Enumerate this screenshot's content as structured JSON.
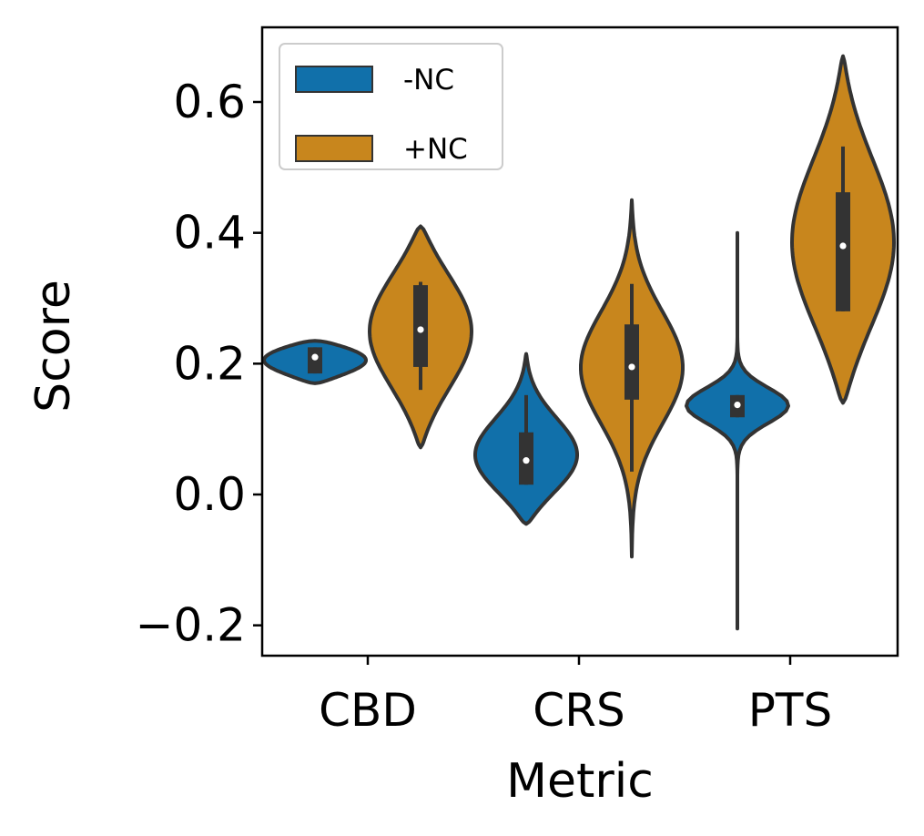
{
  "chart_data": {
    "type": "violin",
    "title": "",
    "xlabel": "Metric",
    "ylabel": "Score",
    "categories": [
      "CBD",
      "CRS",
      "PTS"
    ],
    "ylim": [
      -0.25,
      0.72
    ],
    "yticks": [
      -0.2,
      0.0,
      0.2,
      0.4,
      0.6
    ],
    "ytick_labels": [
      "−0.2",
      "0.0",
      "0.2",
      "0.4",
      "0.6"
    ],
    "legend_position": "upper-left",
    "series": [
      {
        "name": "-NC",
        "color": "#1170aa",
        "values": [
          {
            "category": "CBD",
            "min": 0.17,
            "max": 0.235,
            "q1": 0.185,
            "median": 0.21,
            "q3": 0.225,
            "whisker_low": 0.185,
            "whisker_high": 0.225
          },
          {
            "category": "CRS",
            "min": -0.045,
            "max": 0.215,
            "q1": 0.015,
            "median": 0.052,
            "q3": 0.095,
            "whisker_low": 0.015,
            "whisker_high": 0.152
          },
          {
            "category": "PTS",
            "min": -0.205,
            "max": 0.4,
            "q1": 0.118,
            "median": 0.137,
            "q3": 0.152,
            "whisker_low": 0.118,
            "whisker_high": 0.152
          }
        ]
      },
      {
        "name": "+NC",
        "color": "#c8861d",
        "values": [
          {
            "category": "CBD",
            "min": 0.072,
            "max": 0.41,
            "q1": 0.195,
            "median": 0.252,
            "q3": 0.32,
            "whisker_low": 0.16,
            "whisker_high": 0.325
          },
          {
            "category": "CRS",
            "min": -0.095,
            "max": 0.45,
            "q1": 0.145,
            "median": 0.195,
            "q3": 0.26,
            "whisker_low": 0.035,
            "whisker_high": 0.322
          },
          {
            "category": "PTS",
            "min": 0.14,
            "max": 0.67,
            "q1": 0.28,
            "median": 0.38,
            "q3": 0.462,
            "whisker_low": 0.28,
            "whisker_high": 0.532
          }
        ]
      }
    ]
  }
}
